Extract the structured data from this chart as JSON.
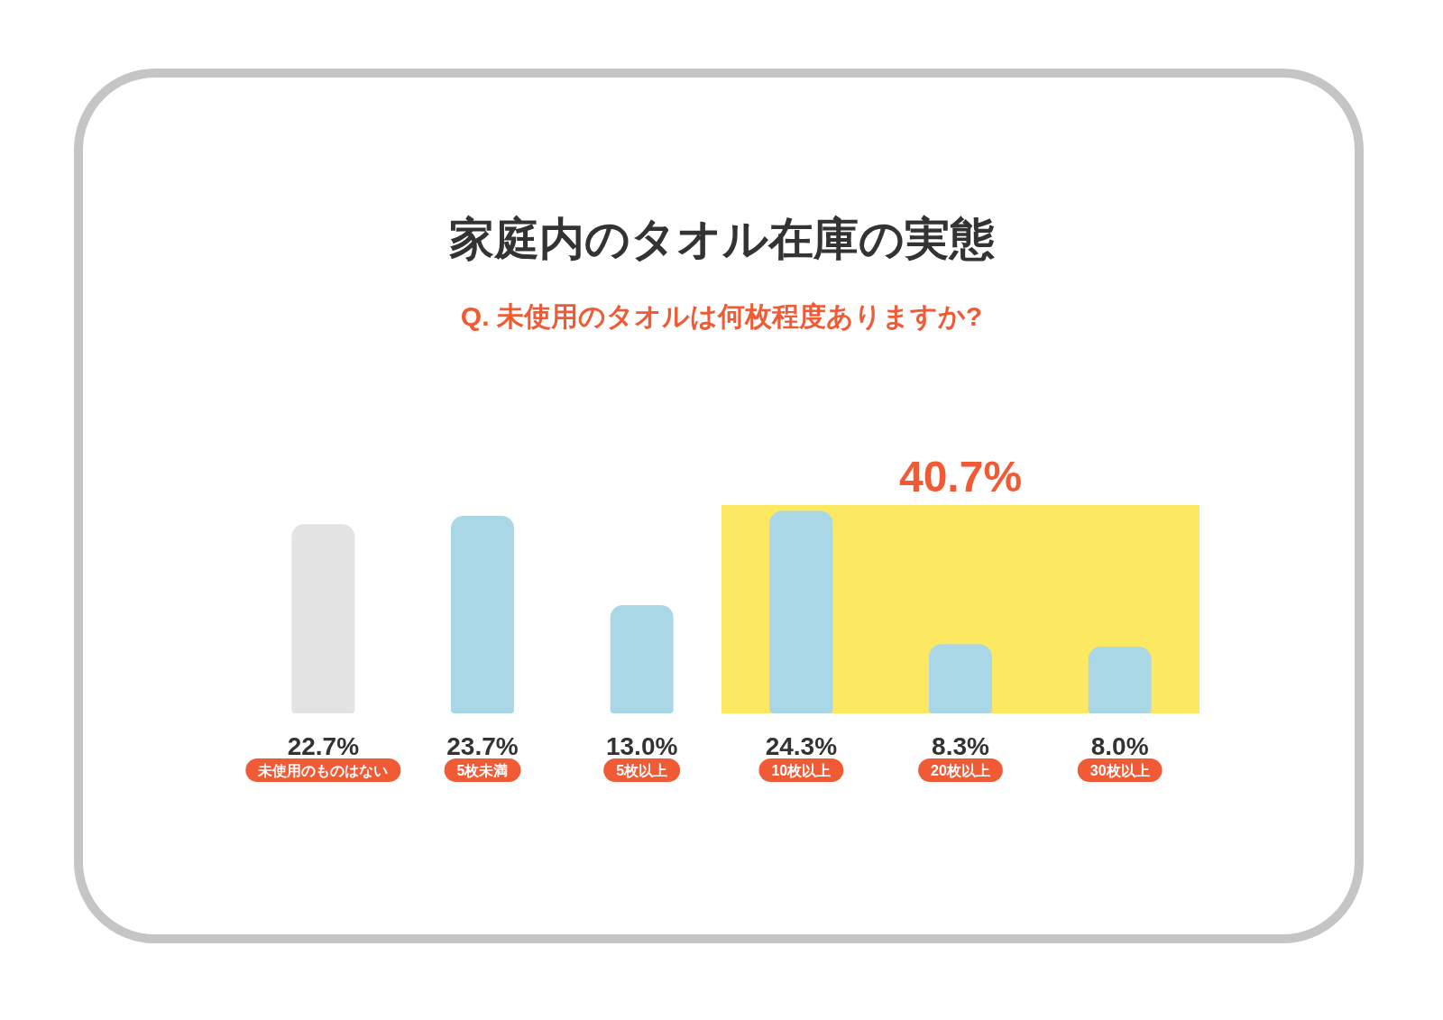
{
  "chart_data": {
    "type": "bar",
    "title": "家庭内のタオル在庫の実態",
    "subtitle": "Q. 未使用のタオルは何枚程度ありますか?",
    "categories": [
      "未使用のものはない",
      "5枚未満",
      "5枚以上",
      "10枚以上",
      "20枚以上",
      "30枚以上"
    ],
    "values": [
      22.7,
      23.7,
      13.0,
      24.3,
      8.3,
      8.0
    ],
    "value_labels": [
      "22.7%",
      "23.7%",
      "13.0%",
      "24.3%",
      "8.3%",
      "8.0%"
    ],
    "colors": [
      "#e3e3e3",
      "#a9d7e6",
      "#a9d7e6",
      "#a9d7e6",
      "#a9d7e6",
      "#a9d7e6"
    ],
    "bands": [
      {
        "axis": "x",
        "from": "10枚以上",
        "to": "30枚以上",
        "label": "40.7%",
        "color": "#fde961"
      }
    ],
    "tick_labels": "x",
    "grid": false
  }
}
